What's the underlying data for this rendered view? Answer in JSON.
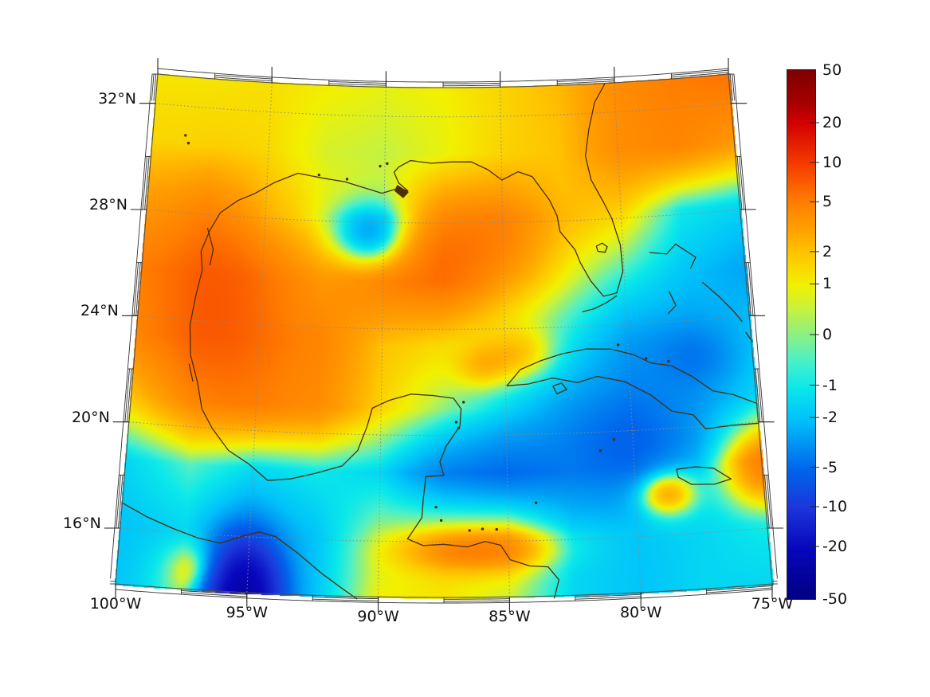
{
  "figure": {
    "background": "#ffffff"
  },
  "map": {
    "coast_color": "#4b2f0b",
    "gridline_color": "#8a8a8a",
    "frame_color": "#333333",
    "edge_color": "#4d4d4d",
    "label_color": "#111111"
  },
  "chart_data": {
    "type": "heatmap",
    "title": "",
    "projection": "conic, meridians converge northward",
    "lon_range": [
      -100,
      -75
    ],
    "lat_range": [
      13.9,
      33.1
    ],
    "grid_interval_deg": {
      "lon": 5,
      "lat": 4
    },
    "lon_ticks": [
      {
        "lon": -100,
        "label": "100°W"
      },
      {
        "lon": -95,
        "label": "95°W"
      },
      {
        "lon": -90,
        "label": "90°W"
      },
      {
        "lon": -85,
        "label": "85°W"
      },
      {
        "lon": -80,
        "label": "80°W"
      },
      {
        "lon": -75,
        "label": "75°W"
      }
    ],
    "lat_ticks": [
      {
        "lat": 32,
        "label": "32°N"
      },
      {
        "lat": 28,
        "label": "28°N"
      },
      {
        "lat": 24,
        "label": "24°N"
      },
      {
        "lat": 20,
        "label": "20°N"
      },
      {
        "lat": 16,
        "label": "16°N"
      }
    ],
    "colorbar": {
      "limits": [
        -50,
        50
      ],
      "scale": "asinh",
      "ticks": [
        {
          "value": 50,
          "label": "50"
        },
        {
          "value": 20,
          "label": "20"
        },
        {
          "value": 10,
          "label": "10"
        },
        {
          "value": 5,
          "label": "5"
        },
        {
          "value": 2,
          "label": "2"
        },
        {
          "value": 1,
          "label": "1"
        },
        {
          "value": 0,
          "label": "0"
        },
        {
          "value": -1,
          "label": "-1"
        },
        {
          "value": -2,
          "label": "-2"
        },
        {
          "value": -5,
          "label": "-5"
        },
        {
          "value": -10,
          "label": "-10"
        },
        {
          "value": -20,
          "label": "-20"
        },
        {
          "value": -50,
          "label": "-50"
        }
      ],
      "colormap_stops": [
        [
          0.0,
          "#7f0000"
        ],
        [
          0.06,
          "#a50000"
        ],
        [
          0.1,
          "#d40000"
        ],
        [
          0.177,
          "#f53c00"
        ],
        [
          0.25,
          "#ff7f00"
        ],
        [
          0.3,
          "#ffa000"
        ],
        [
          0.344,
          "#ffc300"
        ],
        [
          0.406,
          "#f2f000"
        ],
        [
          0.45,
          "#c9f23c"
        ],
        [
          0.5,
          "#8cf083"
        ],
        [
          0.55,
          "#4cf0c8"
        ],
        [
          0.6,
          "#0ae8ea"
        ],
        [
          0.66,
          "#00c3fa"
        ],
        [
          0.755,
          "#0066ec"
        ],
        [
          0.829,
          "#1c36da"
        ],
        [
          0.905,
          "#0707bd"
        ],
        [
          1.0,
          "#000082"
        ]
      ]
    },
    "grid": {
      "lons": [
        -100,
        -97.5,
        -95,
        -92.5,
        -90,
        -87.5,
        -85,
        -82.5,
        -80,
        -77.5,
        -75
      ],
      "lats": [
        33,
        30.6,
        28.2,
        25.8,
        23.4,
        21,
        18.6,
        16.2,
        13.8
      ],
      "values": [
        [
          1.2,
          1.2,
          1.3,
          1.0,
          0.8,
          1.0,
          1.5,
          2.2,
          4.0,
          5.0,
          5.5
        ],
        [
          1.5,
          1.5,
          1.3,
          0.6,
          0.4,
          0.8,
          1.5,
          2.0,
          4.0,
          4.5,
          3.5
        ],
        [
          3.5,
          4.0,
          2.0,
          1.0,
          0.5,
          3.0,
          3.5,
          2.0,
          1.5,
          -1.0,
          -1.5
        ],
        [
          5.0,
          6.0,
          4.5,
          3.5,
          4.5,
          4.5,
          2.0,
          0.5,
          -0.8,
          -2.0,
          -2.8
        ],
        [
          4.5,
          6.0,
          5.0,
          4.5,
          2.0,
          1.2,
          0.2,
          -1.2,
          -3.0,
          -3.0,
          -2.0
        ],
        [
          2.0,
          4.0,
          4.5,
          4.0,
          1.5,
          0.0,
          -1.5,
          -3.0,
          -4.0,
          -3.0,
          -1.5
        ],
        [
          -1.5,
          -0.5,
          -1.5,
          -1.0,
          -1.5,
          -4.0,
          -5.0,
          -4.0,
          -4.0,
          -2.0,
          2.5
        ],
        [
          -2.0,
          -1.5,
          -3.0,
          -2.0,
          0.3,
          1.2,
          1.5,
          -1.5,
          -2.0,
          -1.5,
          -1.0
        ],
        [
          -2.0,
          -0.5,
          -4.0,
          -2.0,
          1.0,
          1.2,
          0.5,
          -1.5,
          -2.0,
          -1.5,
          -1.5
        ]
      ]
    },
    "anomalies": [
      {
        "lon": -90.6,
        "lat": 27.45,
        "slon": 1.1,
        "slat": 0.85,
        "amp": -4.5
      },
      {
        "lon": -86.5,
        "lat": 27.0,
        "slon": 2.3,
        "slat": 1.4,
        "amp": 2.2
      },
      {
        "lon": -96.3,
        "lat": 24.8,
        "slon": 1.5,
        "slat": 2.8,
        "amp": 1.8
      },
      {
        "lon": -95.2,
        "lat": 13.9,
        "slon": 0.85,
        "slat": 1.2,
        "amp": -24
      },
      {
        "lon": -86.2,
        "lat": 15.65,
        "slon": 1.9,
        "slat": 0.5,
        "amp": 3.6
      },
      {
        "lon": -96.6,
        "lat": 14.6,
        "slon": 0.9,
        "slat": 0.7,
        "amp": 3.4
      },
      {
        "lon": -84.3,
        "lat": 23.0,
        "slon": 0.95,
        "slat": 0.7,
        "amp": 2.2
      },
      {
        "lon": -75.1,
        "lat": 18.2,
        "slon": 1.0,
        "slat": 0.9,
        "amp": 2.6
      },
      {
        "lon": -85.9,
        "lat": 22.6,
        "slon": 0.8,
        "slat": 0.6,
        "amp": 2.0
      },
      {
        "lon": -80.0,
        "lat": 19.6,
        "slon": 1.8,
        "slat": 1.0,
        "amp": -1.5
      },
      {
        "lon": -77.3,
        "lat": 22.6,
        "slon": 1.2,
        "slat": 0.8,
        "amp": -1.5
      },
      {
        "lon": -78.8,
        "lat": 17.6,
        "slon": 0.8,
        "slat": 0.6,
        "amp": 5.0
      }
    ],
    "coastlines": [
      {
        "name": "north-america-gulf-atlantic",
        "closed": false,
        "points": [
          [
            -80.4,
            33.1
          ],
          [
            -80.9,
            32.4
          ],
          [
            -81.2,
            31.4
          ],
          [
            -81.4,
            30.4
          ],
          [
            -81.2,
            29.5
          ],
          [
            -80.7,
            28.6
          ],
          [
            -80.4,
            28.0
          ],
          [
            -80.1,
            27.0
          ],
          [
            -80.05,
            26.0
          ],
          [
            -80.35,
            25.2
          ],
          [
            -80.9,
            25.1
          ],
          [
            -81.4,
            25.7
          ],
          [
            -81.8,
            26.4
          ],
          [
            -82.0,
            26.9
          ],
          [
            -82.6,
            27.6
          ],
          [
            -82.7,
            28.2
          ],
          [
            -83.0,
            28.8
          ],
          [
            -83.7,
            29.7
          ],
          [
            -84.3,
            29.9
          ],
          [
            -85.0,
            29.6
          ],
          [
            -85.6,
            30.0
          ],
          [
            -86.3,
            30.3
          ],
          [
            -87.2,
            30.3
          ],
          [
            -88.0,
            30.25
          ],
          [
            -88.9,
            30.35
          ],
          [
            -89.4,
            30.1
          ],
          [
            -89.6,
            29.9
          ],
          [
            -89.4,
            29.5
          ],
          [
            -89.0,
            29.2
          ],
          [
            -89.4,
            29.3
          ],
          [
            -90.1,
            29.1
          ],
          [
            -90.9,
            29.3
          ],
          [
            -91.7,
            29.5
          ],
          [
            -92.6,
            29.6
          ],
          [
            -93.7,
            29.75
          ],
          [
            -94.7,
            29.35
          ],
          [
            -95.5,
            28.9
          ],
          [
            -96.2,
            28.6
          ],
          [
            -96.9,
            28.1
          ],
          [
            -97.3,
            27.4
          ],
          [
            -97.6,
            26.6
          ],
          [
            -97.5,
            25.9
          ],
          [
            -97.7,
            24.9
          ],
          [
            -97.85,
            23.8
          ],
          [
            -97.75,
            22.7
          ],
          [
            -97.4,
            21.7
          ],
          [
            -97.15,
            20.7
          ],
          [
            -96.7,
            20.0
          ],
          [
            -96.0,
            19.2
          ],
          [
            -95.2,
            18.75
          ],
          [
            -94.4,
            18.15
          ],
          [
            -93.5,
            18.25
          ],
          [
            -92.5,
            18.5
          ],
          [
            -91.5,
            18.8
          ],
          [
            -90.9,
            19.4
          ],
          [
            -90.55,
            20.3
          ],
          [
            -90.35,
            21.0
          ],
          [
            -89.7,
            21.3
          ],
          [
            -88.8,
            21.55
          ],
          [
            -87.9,
            21.5
          ],
          [
            -87.1,
            21.4
          ],
          [
            -86.8,
            21.0
          ],
          [
            -86.85,
            20.35
          ],
          [
            -87.4,
            19.6
          ],
          [
            -87.65,
            19.0
          ],
          [
            -87.5,
            18.5
          ],
          [
            -88.2,
            18.45
          ],
          [
            -88.3,
            17.6
          ],
          [
            -88.35,
            16.9
          ],
          [
            -88.9,
            16.1
          ],
          [
            -88.3,
            15.85
          ],
          [
            -87.5,
            15.9
          ],
          [
            -86.6,
            15.8
          ],
          [
            -85.9,
            16.0
          ],
          [
            -85.3,
            15.85
          ],
          [
            -84.95,
            15.3
          ],
          [
            -84.2,
            15.05
          ],
          [
            -83.5,
            15.0
          ],
          [
            -83.1,
            14.5
          ],
          [
            -83.3,
            13.8
          ]
        ]
      },
      {
        "name": "mexico-pacific-coast",
        "closed": false,
        "points": [
          [
            -100,
            16.95
          ],
          [
            -99.0,
            16.5
          ],
          [
            -98.0,
            16.15
          ],
          [
            -97.0,
            15.85
          ],
          [
            -96.1,
            15.7
          ],
          [
            -95.3,
            16.0
          ],
          [
            -94.65,
            16.2
          ],
          [
            -94.0,
            16.05
          ],
          [
            -93.1,
            15.45
          ],
          [
            -92.2,
            14.75
          ],
          [
            -91.4,
            14.2
          ],
          [
            -90.8,
            13.8
          ]
        ]
      },
      {
        "name": "cuba",
        "closed": true,
        "points": [
          [
            -84.95,
            21.85
          ],
          [
            -84.4,
            22.45
          ],
          [
            -83.6,
            22.75
          ],
          [
            -82.7,
            23.0
          ],
          [
            -81.7,
            23.15
          ],
          [
            -80.7,
            23.1
          ],
          [
            -79.8,
            22.85
          ],
          [
            -79.1,
            22.5
          ],
          [
            -78.3,
            22.35
          ],
          [
            -77.5,
            21.9
          ],
          [
            -76.7,
            21.3
          ],
          [
            -75.9,
            21.1
          ],
          [
            -75.0,
            20.7
          ],
          [
            -75.0,
            19.95
          ],
          [
            -76.1,
            19.95
          ],
          [
            -77.1,
            19.9
          ],
          [
            -77.55,
            20.45
          ],
          [
            -78.4,
            20.65
          ],
          [
            -79.2,
            21.3
          ],
          [
            -80.2,
            21.85
          ],
          [
            -81.3,
            22.1
          ],
          [
            -82.1,
            21.9
          ],
          [
            -83.1,
            22.1
          ],
          [
            -84.1,
            21.9
          ]
        ]
      },
      {
        "name": "jamaica",
        "closed": true,
        "points": [
          [
            -78.35,
            18.45
          ],
          [
            -77.6,
            18.5
          ],
          [
            -76.9,
            18.4
          ],
          [
            -76.25,
            17.95
          ],
          [
            -76.9,
            17.8
          ],
          [
            -77.8,
            17.85
          ],
          [
            -78.3,
            18.15
          ]
        ]
      },
      {
        "name": "isla-de-la-juventud",
        "closed": true,
        "points": [
          [
            -83.1,
            21.8
          ],
          [
            -82.75,
            21.9
          ],
          [
            -82.55,
            21.65
          ],
          [
            -82.95,
            21.5
          ]
        ]
      },
      {
        "name": "lake-okeechobee",
        "closed": true,
        "points": [
          [
            -81.1,
            27.0
          ],
          [
            -80.85,
            27.1
          ],
          [
            -80.65,
            26.95
          ],
          [
            -80.75,
            26.75
          ],
          [
            -81.05,
            26.8
          ]
        ]
      },
      {
        "name": "florida-keys",
        "closed": false,
        "points": [
          [
            -81.8,
            24.55
          ],
          [
            -81.3,
            24.65
          ],
          [
            -80.8,
            24.85
          ],
          [
            -80.35,
            25.1
          ]
        ]
      },
      {
        "name": "padre-island",
        "closed": false,
        "points": [
          [
            -97.4,
            27.5
          ],
          [
            -97.1,
            26.7
          ],
          [
            -97.2,
            26.1
          ]
        ]
      },
      {
        "name": "laguna-tamiahua",
        "closed": false,
        "points": [
          [
            -97.78,
            22.35
          ],
          [
            -97.58,
            21.7
          ]
        ]
      },
      {
        "name": "grand-bahama-abaco",
        "closed": false,
        "points": [
          [
            -78.9,
            26.65
          ],
          [
            -78.2,
            26.55
          ],
          [
            -77.8,
            26.9
          ],
          [
            -77.0,
            26.35
          ],
          [
            -77.25,
            25.95
          ]
        ]
      },
      {
        "name": "andros",
        "closed": false,
        "points": [
          [
            -78.2,
            25.15
          ],
          [
            -77.95,
            24.6
          ],
          [
            -78.3,
            24.3
          ]
        ]
      },
      {
        "name": "eleuthera-exuma",
        "closed": false,
        "points": [
          [
            -76.8,
            25.4
          ],
          [
            -76.15,
            24.8
          ],
          [
            -75.6,
            24.2
          ],
          [
            -75.3,
            23.8
          ]
        ]
      },
      {
        "name": "long-island-bahamas",
        "closed": false,
        "points": [
          [
            -75.2,
            23.4
          ],
          [
            -74.95,
            23.0
          ]
        ]
      },
      {
        "name": "mississippi-delta",
        "closed": true,
        "points": [
          [
            -89.45,
            29.4
          ],
          [
            -89.0,
            29.15
          ],
          [
            -89.2,
            28.95
          ],
          [
            -89.55,
            29.2
          ]
        ]
      }
    ],
    "island_dots": [
      [
        -81.3,
        19.3
      ],
      [
        -80.75,
        19.7
      ],
      [
        -86.5,
        16.42
      ],
      [
        -86.0,
        16.47
      ],
      [
        -85.45,
        16.45
      ],
      [
        -87.0,
        20.5
      ],
      [
        -86.9,
        20.28
      ],
      [
        -86.7,
        21.25
      ],
      [
        -98.6,
        30.9
      ],
      [
        -98.45,
        30.62
      ],
      [
        -90.2,
        30.12
      ],
      [
        -89.9,
        30.22
      ],
      [
        -91.6,
        29.6
      ],
      [
        -92.8,
        29.72
      ],
      [
        -87.8,
        17.3
      ],
      [
        -87.6,
        16.8
      ],
      [
        -83.9,
        17.42
      ],
      [
        -80.4,
        23.25
      ],
      [
        -79.3,
        22.68
      ],
      [
        -78.4,
        22.52
      ]
    ]
  }
}
